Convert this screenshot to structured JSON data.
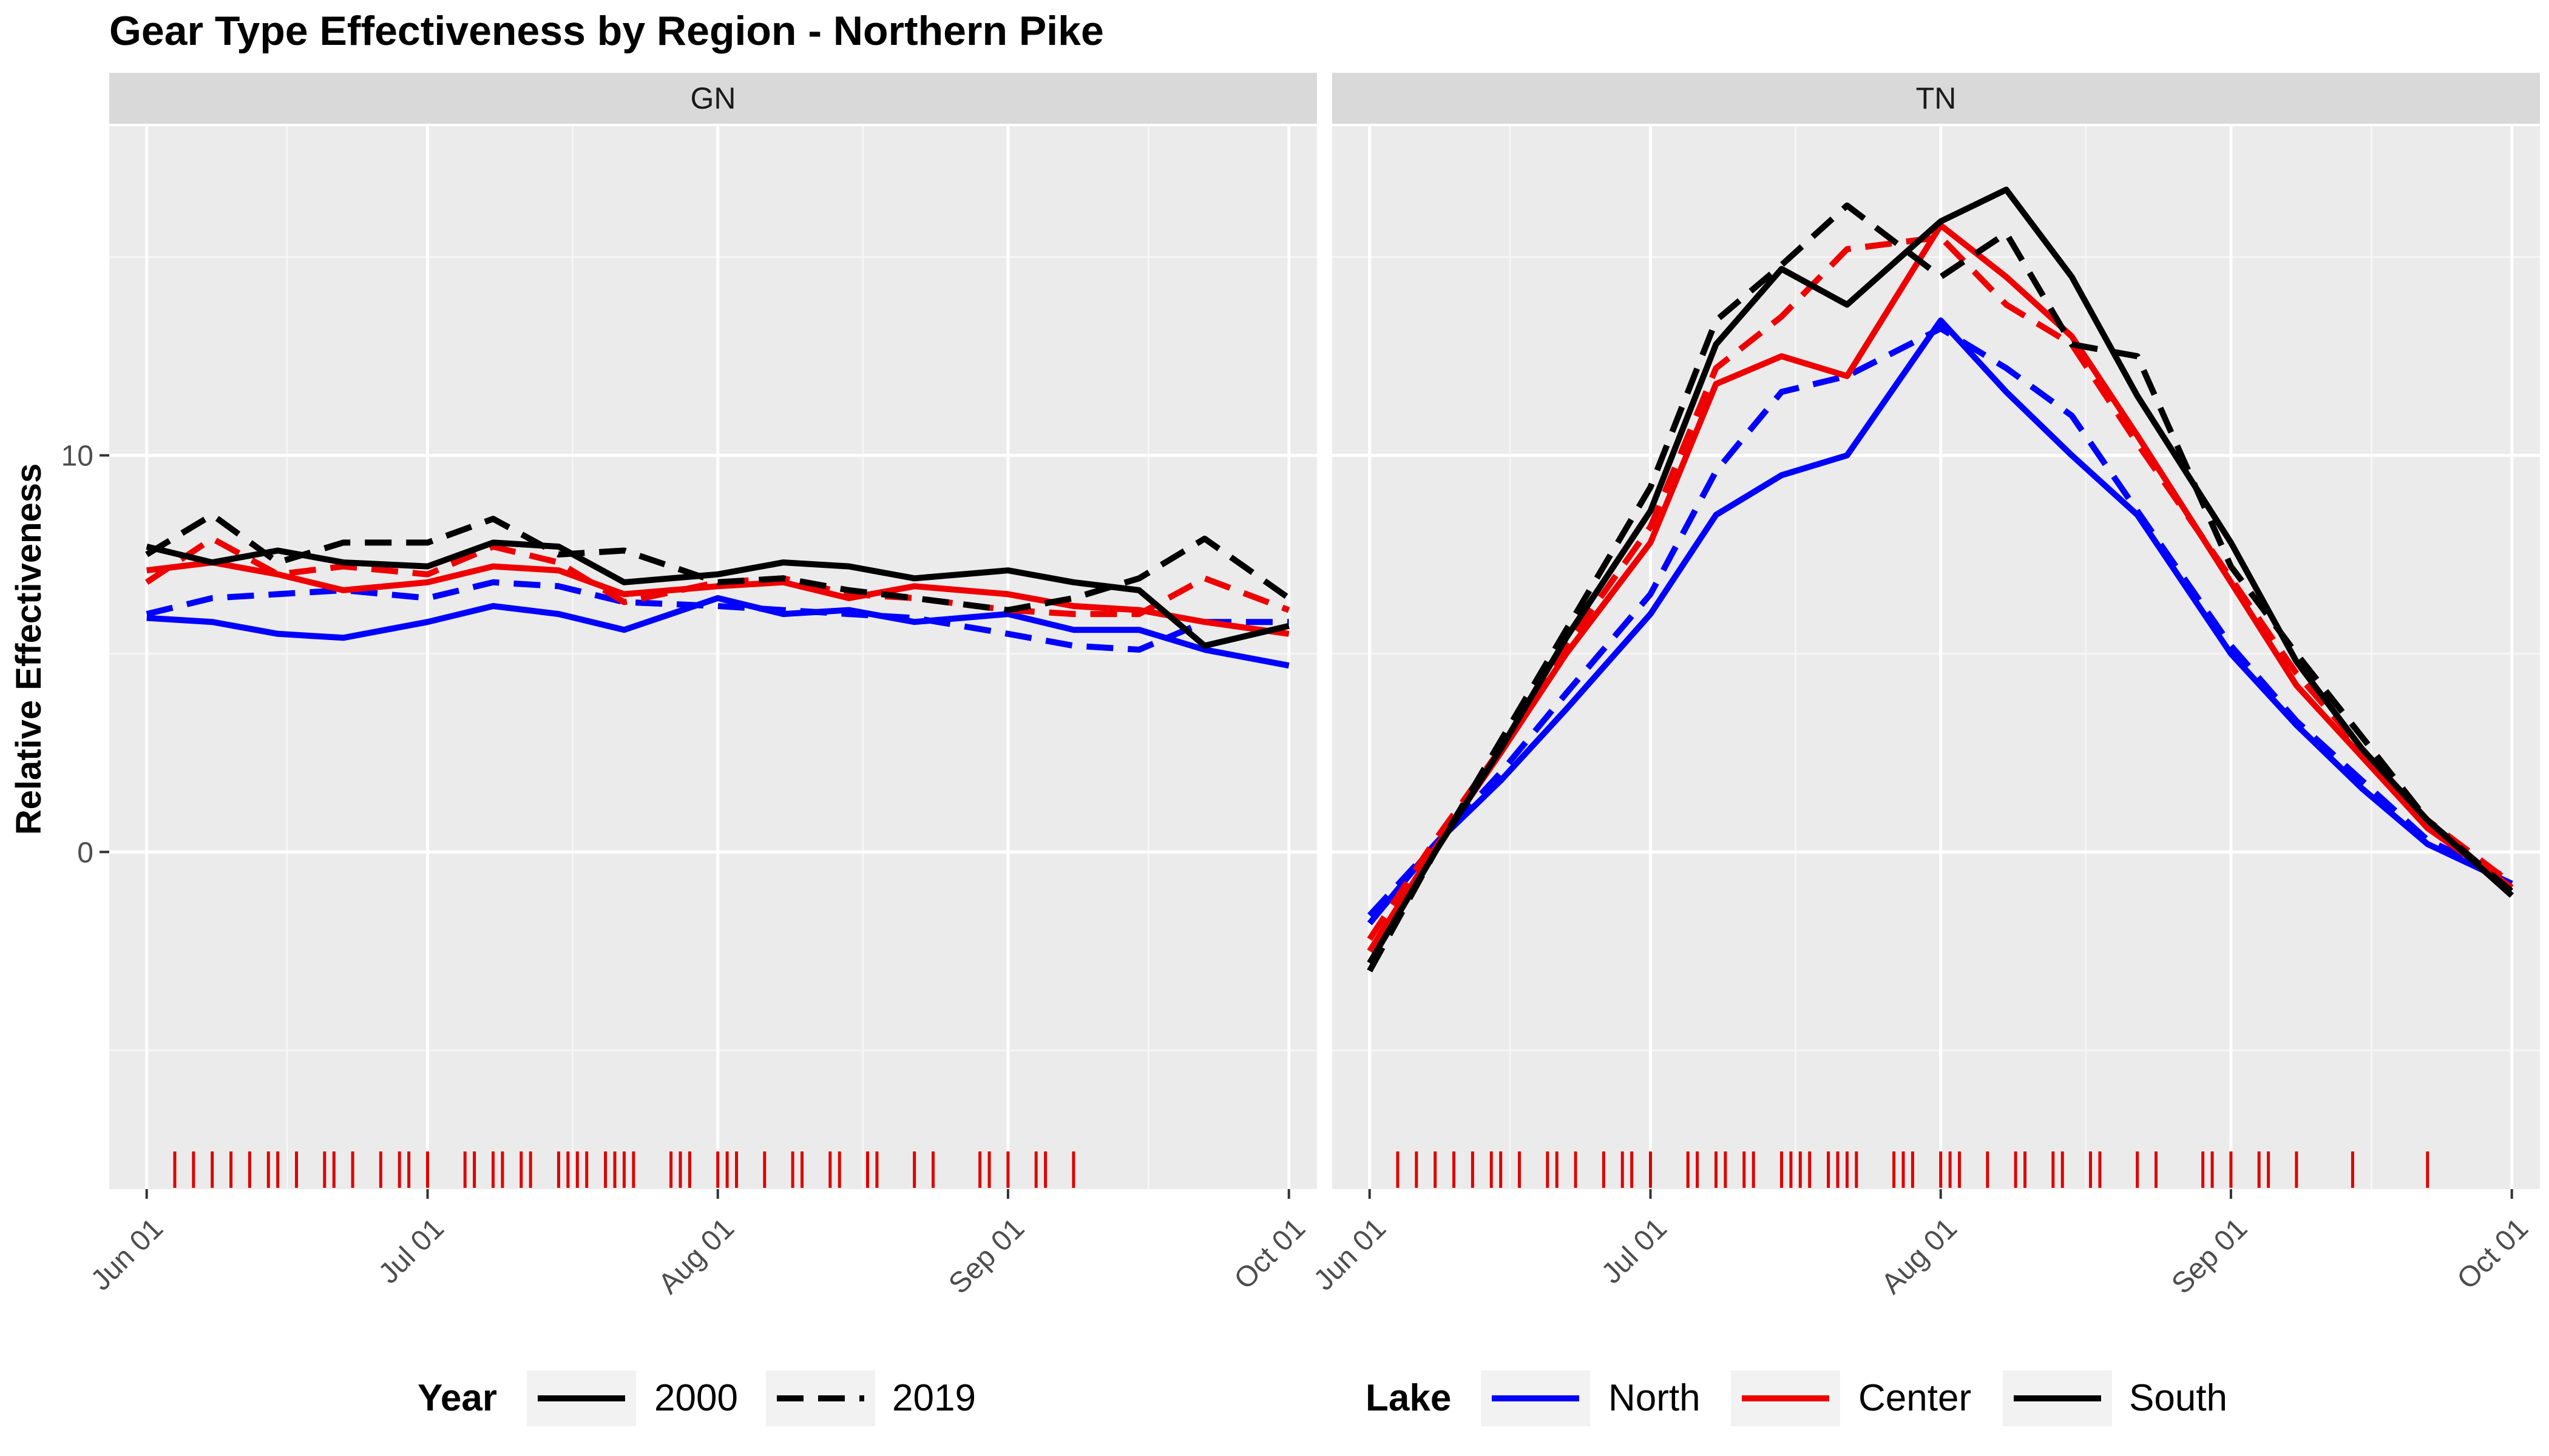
{
  "chart_data": {
    "type": "line",
    "title": "Gear Type Effectiveness by Region - Northern Pike",
    "ylabel": "Relative Effectiveness",
    "xlabel": "",
    "x_range": [
      "2000-05-28",
      "2000-10-04"
    ],
    "x_ticks": [
      {
        "date": "2000-06-01",
        "label": "Jun 01"
      },
      {
        "date": "2000-07-01",
        "label": "Jul 01"
      },
      {
        "date": "2000-08-01",
        "label": "Aug 01"
      },
      {
        "date": "2000-09-01",
        "label": "Sep 01"
      },
      {
        "date": "2000-10-01",
        "label": "Oct 01"
      }
    ],
    "ylim": [
      -8.5,
      18.3
    ],
    "y_ticks": [
      {
        "value": 0,
        "label": "0"
      },
      {
        "value": 10,
        "label": "10"
      }
    ],
    "y_minor": [
      -5,
      5,
      15
    ],
    "grid": true,
    "legend_year": {
      "title": "Year",
      "entries": [
        {
          "label": "2000",
          "linetype": "solid"
        },
        {
          "label": "2019",
          "linetype": "dashed"
        }
      ]
    },
    "legend_lake": {
      "title": "Lake",
      "entries": [
        {
          "label": "North",
          "color": "#0000ff"
        },
        {
          "label": "Center",
          "color": "#ee0000"
        },
        {
          "label": "South",
          "color": "#000000"
        }
      ]
    },
    "rug_color": "#dd0000",
    "panels": [
      {
        "label": "GN",
        "rug_dates": [
          "2000-06-04",
          "2000-06-06",
          "2000-06-08",
          "2000-06-10",
          "2000-06-12",
          "2000-06-14",
          "2000-06-15",
          "2000-06-17",
          "2000-06-20",
          "2000-06-21",
          "2000-06-23",
          "2000-06-26",
          "2000-06-28",
          "2000-06-29",
          "2000-07-01",
          "2000-07-05",
          "2000-07-06",
          "2000-07-08",
          "2000-07-09",
          "2000-07-11",
          "2000-07-12",
          "2000-07-15",
          "2000-07-16",
          "2000-07-17",
          "2000-07-18",
          "2000-07-20",
          "2000-07-21",
          "2000-07-22",
          "2000-07-23",
          "2000-07-27",
          "2000-07-28",
          "2000-07-29",
          "2000-08-01",
          "2000-08-02",
          "2000-08-03",
          "2000-08-06",
          "2000-08-09",
          "2000-08-10",
          "2000-08-13",
          "2000-08-14",
          "2000-08-17",
          "2000-08-18",
          "2000-08-22",
          "2000-08-24",
          "2000-08-29",
          "2000-08-30",
          "2000-09-01",
          "2000-09-04",
          "2000-09-05",
          "2000-09-08"
        ],
        "series": [
          {
            "name": "North",
            "year": "2000",
            "color": "#0000ff",
            "x": [
              "2000-06-01",
              "2000-06-08",
              "2000-06-15",
              "2000-06-22",
              "2000-07-01",
              "2000-07-08",
              "2000-07-15",
              "2000-07-22",
              "2000-08-01",
              "2000-08-08",
              "2000-08-15",
              "2000-08-22",
              "2000-09-01",
              "2000-09-08",
              "2000-09-15",
              "2000-09-22",
              "2000-10-01"
            ],
            "y": [
              5.9,
              5.8,
              5.5,
              5.4,
              5.8,
              6.2,
              6.0,
              5.6,
              6.4,
              6.0,
              6.1,
              5.8,
              6.0,
              5.6,
              5.6,
              5.1,
              4.7
            ]
          },
          {
            "name": "North",
            "year": "2019",
            "color": "#0000ff",
            "x": [
              "2000-06-01",
              "2000-06-08",
              "2000-06-15",
              "2000-06-22",
              "2000-07-01",
              "2000-07-08",
              "2000-07-15",
              "2000-07-22",
              "2000-08-01",
              "2000-08-08",
              "2000-08-15",
              "2000-08-22",
              "2000-09-01",
              "2000-09-08",
              "2000-09-15",
              "2000-09-22",
              "2000-10-01"
            ],
            "y": [
              6.0,
              6.4,
              6.5,
              6.6,
              6.4,
              6.8,
              6.7,
              6.3,
              6.2,
              6.1,
              6.0,
              5.9,
              5.5,
              5.2,
              5.1,
              5.8,
              5.8
            ]
          },
          {
            "name": "Center",
            "year": "2000",
            "color": "#ee0000",
            "x": [
              "2000-06-01",
              "2000-06-08",
              "2000-06-15",
              "2000-06-22",
              "2000-07-01",
              "2000-07-08",
              "2000-07-15",
              "2000-07-22",
              "2000-08-01",
              "2000-08-08",
              "2000-08-15",
              "2000-08-22",
              "2000-09-01",
              "2000-09-08",
              "2000-09-15",
              "2000-09-22",
              "2000-10-01"
            ],
            "y": [
              7.1,
              7.3,
              7.0,
              6.6,
              6.8,
              7.2,
              7.1,
              6.5,
              6.7,
              6.8,
              6.4,
              6.7,
              6.5,
              6.2,
              6.1,
              5.8,
              5.5
            ]
          },
          {
            "name": "Center",
            "year": "2019",
            "color": "#ee0000",
            "x": [
              "2000-06-01",
              "2000-06-08",
              "2000-06-15",
              "2000-06-22",
              "2000-07-01",
              "2000-07-08",
              "2000-07-15",
              "2000-07-22",
              "2000-08-01",
              "2000-08-08",
              "2000-08-15",
              "2000-08-22",
              "2000-09-01",
              "2000-09-08",
              "2000-09-15",
              "2000-09-22",
              "2000-10-01"
            ],
            "y": [
              6.8,
              7.9,
              7.0,
              7.2,
              7.0,
              7.7,
              7.3,
              6.3,
              6.8,
              6.9,
              6.5,
              6.4,
              6.1,
              6.0,
              6.0,
              6.9,
              6.1
            ]
          },
          {
            "name": "South",
            "year": "2000",
            "color": "#000000",
            "x": [
              "2000-06-01",
              "2000-06-08",
              "2000-06-15",
              "2000-06-22",
              "2000-07-01",
              "2000-07-08",
              "2000-07-15",
              "2000-07-22",
              "2000-08-01",
              "2000-08-08",
              "2000-08-15",
              "2000-08-22",
              "2000-09-01",
              "2000-09-08",
              "2000-09-15",
              "2000-09-22",
              "2000-10-01"
            ],
            "y": [
              7.7,
              7.3,
              7.6,
              7.3,
              7.2,
              7.8,
              7.7,
              6.8,
              7.0,
              7.3,
              7.2,
              6.9,
              7.1,
              6.8,
              6.6,
              5.2,
              5.7
            ]
          },
          {
            "name": "South",
            "year": "2019",
            "color": "#000000",
            "x": [
              "2000-06-01",
              "2000-06-08",
              "2000-06-15",
              "2000-06-22",
              "2000-07-01",
              "2000-07-08",
              "2000-07-15",
              "2000-07-22",
              "2000-08-01",
              "2000-08-08",
              "2000-08-15",
              "2000-08-22",
              "2000-09-01",
              "2000-09-08",
              "2000-09-15",
              "2000-09-22",
              "2000-10-01"
            ],
            "y": [
              7.5,
              8.5,
              7.3,
              7.8,
              7.8,
              8.4,
              7.5,
              7.6,
              6.8,
              6.9,
              6.6,
              6.4,
              6.1,
              6.4,
              6.9,
              7.9,
              6.4
            ]
          }
        ]
      },
      {
        "label": "TN",
        "rug_dates": [
          "2000-06-04",
          "2000-06-06",
          "2000-06-08",
          "2000-06-10",
          "2000-06-12",
          "2000-06-14",
          "2000-06-15",
          "2000-06-17",
          "2000-06-20",
          "2000-06-21",
          "2000-06-23",
          "2000-06-26",
          "2000-06-28",
          "2000-06-29",
          "2000-07-01",
          "2000-07-05",
          "2000-07-06",
          "2000-07-08",
          "2000-07-09",
          "2000-07-11",
          "2000-07-12",
          "2000-07-15",
          "2000-07-16",
          "2000-07-17",
          "2000-07-18",
          "2000-07-20",
          "2000-07-21",
          "2000-07-22",
          "2000-07-23",
          "2000-07-27",
          "2000-07-28",
          "2000-07-29",
          "2000-08-01",
          "2000-08-02",
          "2000-08-03",
          "2000-08-06",
          "2000-08-09",
          "2000-08-10",
          "2000-08-13",
          "2000-08-14",
          "2000-08-17",
          "2000-08-18",
          "2000-08-22",
          "2000-08-24",
          "2000-08-29",
          "2000-08-30",
          "2000-09-01",
          "2000-09-04",
          "2000-09-05",
          "2000-09-08",
          "2000-09-14",
          "2000-09-22"
        ],
        "series": [
          {
            "name": "North",
            "year": "2000",
            "color": "#0000ff",
            "x": [
              "2000-06-01",
              "2000-06-08",
              "2000-06-15",
              "2000-06-22",
              "2000-07-01",
              "2000-07-08",
              "2000-07-15",
              "2000-07-22",
              "2000-08-01",
              "2000-08-08",
              "2000-08-15",
              "2000-08-22",
              "2000-09-01",
              "2000-09-08",
              "2000-09-15",
              "2000-09-22",
              "2000-10-01"
            ],
            "y": [
              -1.8,
              0.2,
              1.8,
              3.6,
              6.0,
              8.5,
              9.5,
              10.0,
              13.4,
              11.6,
              10.0,
              8.5,
              5.0,
              3.2,
              1.6,
              0.2,
              -0.8
            ]
          },
          {
            "name": "North",
            "year": "2019",
            "color": "#0000ff",
            "x": [
              "2000-06-01",
              "2000-06-08",
              "2000-06-15",
              "2000-06-22",
              "2000-07-01",
              "2000-07-08",
              "2000-07-15",
              "2000-07-22",
              "2000-08-01",
              "2000-08-08",
              "2000-08-15",
              "2000-08-22",
              "2000-09-01",
              "2000-09-08",
              "2000-09-15",
              "2000-09-22",
              "2000-10-01"
            ],
            "y": [
              -1.6,
              0.2,
              2.0,
              4.0,
              6.5,
              9.6,
              11.6,
              12.0,
              13.2,
              12.2,
              11.0,
              8.6,
              5.2,
              3.3,
              1.8,
              0.3,
              -0.7
            ]
          },
          {
            "name": "Center",
            "year": "2000",
            "color": "#ee0000",
            "x": [
              "2000-06-01",
              "2000-06-08",
              "2000-06-15",
              "2000-06-22",
              "2000-07-01",
              "2000-07-08",
              "2000-07-15",
              "2000-07-22",
              "2000-08-01",
              "2000-08-08",
              "2000-08-15",
              "2000-08-22",
              "2000-09-01",
              "2000-09-08",
              "2000-09-15",
              "2000-09-22",
              "2000-10-01"
            ],
            "y": [
              -2.5,
              0.1,
              2.5,
              5.0,
              7.8,
              11.8,
              12.5,
              12.0,
              15.8,
              14.5,
              13.0,
              10.5,
              6.8,
              4.2,
              2.4,
              0.6,
              -0.9
            ]
          },
          {
            "name": "Center",
            "year": "2019",
            "color": "#ee0000",
            "x": [
              "2000-06-01",
              "2000-06-08",
              "2000-06-15",
              "2000-06-22",
              "2000-07-01",
              "2000-07-08",
              "2000-07-15",
              "2000-07-22",
              "2000-08-01",
              "2000-08-08",
              "2000-08-15",
              "2000-08-22",
              "2000-09-01",
              "2000-09-08",
              "2000-09-15",
              "2000-09-22",
              "2000-10-01"
            ],
            "y": [
              -2.2,
              0.3,
              2.6,
              5.2,
              8.2,
              12.2,
              13.5,
              15.2,
              15.5,
              13.8,
              12.8,
              10.3,
              6.9,
              4.5,
              2.6,
              0.8,
              -0.8
            ]
          },
          {
            "name": "South",
            "year": "2000",
            "color": "#000000",
            "x": [
              "2000-06-01",
              "2000-06-08",
              "2000-06-15",
              "2000-06-22",
              "2000-07-01",
              "2000-07-08",
              "2000-07-15",
              "2000-07-22",
              "2000-08-01",
              "2000-08-08",
              "2000-08-15",
              "2000-08-22",
              "2000-09-01",
              "2000-09-08",
              "2000-09-15",
              "2000-09-22",
              "2000-10-01"
            ],
            "y": [
              -2.8,
              0.0,
              2.6,
              5.4,
              8.6,
              12.8,
              14.7,
              13.8,
              15.9,
              16.7,
              14.5,
              11.5,
              7.8,
              4.8,
              2.6,
              0.8,
              -1.1
            ]
          },
          {
            "name": "South",
            "year": "2019",
            "color": "#000000",
            "x": [
              "2000-06-01",
              "2000-06-08",
              "2000-06-15",
              "2000-06-22",
              "2000-07-01",
              "2000-07-08",
              "2000-07-15",
              "2000-07-22",
              "2000-08-01",
              "2000-08-08",
              "2000-08-15",
              "2000-08-22",
              "2000-09-01",
              "2000-09-08",
              "2000-09-15",
              "2000-09-22",
              "2000-10-01"
            ],
            "y": [
              -3.0,
              0.0,
              2.8,
              5.6,
              9.2,
              13.4,
              14.8,
              16.3,
              14.5,
              15.6,
              12.8,
              12.5,
              7.2,
              5.0,
              2.9,
              0.8,
              -1.0
            ]
          }
        ]
      }
    ]
  }
}
